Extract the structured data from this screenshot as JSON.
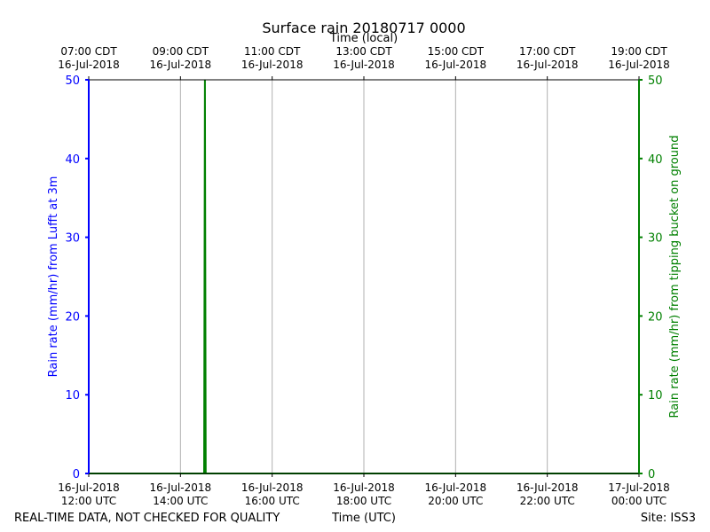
{
  "chart_data": {
    "type": "line",
    "title": "Surface rain 20180717 0000",
    "top_axis_label": "Time (local)",
    "xlabel": "Time (UTC)",
    "ylabel_left": "Rain rate (mm/hr) from Lufft at 3m",
    "ylabel_right": "Rain rate (mm/hr) from tipping bucket on ground",
    "footer_left": "REAL-TIME DATA, NOT CHECKED FOR QUALITY",
    "footer_right": "Site: ISS3",
    "x_range_utc": [
      "2018-07-16 12:00",
      "2018-07-17 00:00"
    ],
    "ylim": [
      0,
      50
    ],
    "yticks": [
      0,
      10,
      20,
      30,
      40,
      50
    ],
    "grid": true,
    "top_ticks": [
      {
        "time": "2018-07-16 12:00",
        "line1": "07:00 CDT",
        "line2": "16-Jul-2018"
      },
      {
        "time": "2018-07-16 14:00",
        "line1": "09:00 CDT",
        "line2": "16-Jul-2018"
      },
      {
        "time": "2018-07-16 16:00",
        "line1": "11:00 CDT",
        "line2": "16-Jul-2018"
      },
      {
        "time": "2018-07-16 18:00",
        "line1": "13:00 CDT",
        "line2": "16-Jul-2018"
      },
      {
        "time": "2018-07-16 20:00",
        "line1": "15:00 CDT",
        "line2": "16-Jul-2018"
      },
      {
        "time": "2018-07-16 22:00",
        "line1": "17:00 CDT",
        "line2": "16-Jul-2018"
      },
      {
        "time": "2018-07-17 00:00",
        "line1": "19:00 CDT",
        "line2": "16-Jul-2018"
      }
    ],
    "bottom_ticks": [
      {
        "time": "2018-07-16 12:00",
        "line1": "16-Jul-2018",
        "line2": "12:00 UTC"
      },
      {
        "time": "2018-07-16 14:00",
        "line1": "16-Jul-2018",
        "line2": "14:00 UTC"
      },
      {
        "time": "2018-07-16 16:00",
        "line1": "16-Jul-2018",
        "line2": "16:00 UTC"
      },
      {
        "time": "2018-07-16 18:00",
        "line1": "16-Jul-2018",
        "line2": "18:00 UTC"
      },
      {
        "time": "2018-07-16 20:00",
        "line1": "16-Jul-2018",
        "line2": "20:00 UTC"
      },
      {
        "time": "2018-07-16 22:00",
        "line1": "16-Jul-2018",
        "line2": "22:00 UTC"
      },
      {
        "time": "2018-07-17 00:00",
        "line1": "17-Jul-2018",
        "line2": "00:00 UTC"
      }
    ],
    "series": [
      {
        "axis": "left",
        "color": "#0000ff",
        "points": [
          [
            "2018-07-16 12:00",
            50
          ],
          [
            "2018-07-16 12:00",
            0
          ]
        ]
      },
      {
        "axis": "right",
        "color": "#008000",
        "points": [
          [
            "2018-07-16 12:00",
            0
          ],
          [
            "2018-07-16 14:31",
            0
          ],
          [
            "2018-07-16 14:32",
            50
          ],
          [
            "2018-07-16 14:33",
            0
          ],
          [
            "2018-07-17 00:00",
            0
          ],
          [
            "2018-07-17 00:00",
            50
          ]
        ]
      }
    ],
    "colors": {
      "left_axis": "#0000ff",
      "right_axis": "#008000",
      "grid": "#b0b0b0"
    }
  }
}
